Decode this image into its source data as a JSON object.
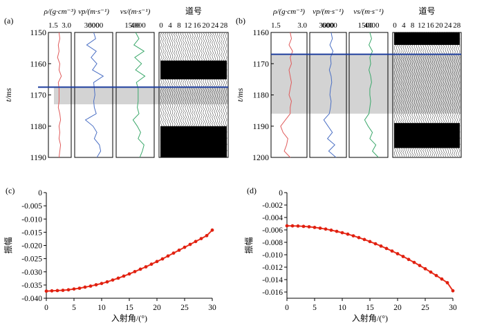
{
  "colors": {
    "density": "#e05a5a",
    "vp": "#4a6fc4",
    "vs": "#3aa86a",
    "marker_line": "#1f3f9e",
    "shade": "#d3d3d3",
    "amp_line": "#e8301e",
    "amp_marker": "#e02010"
  },
  "chart_data": [
    {
      "panel": "(a)",
      "type": "line",
      "ylabel": "t/ms",
      "ylim": [
        1150,
        1190
      ],
      "yticks": [
        "1150",
        "1160",
        "1170",
        "1180",
        "1190"
      ],
      "marker_time": 1167.5,
      "shaded_interval": [
        1167.5,
        1173
      ],
      "tracks": [
        {
          "label": "ρ/(g·cm⁻³)",
          "ticks": [
            "1.5",
            "3.0"
          ],
          "xlim": [
            1.5,
            3.0
          ],
          "t": [
            1150,
            1152,
            1154,
            1156,
            1158,
            1160,
            1162,
            1164,
            1166,
            1168,
            1170,
            1172,
            1174,
            1176,
            1178,
            1180,
            1182,
            1184,
            1186,
            1188,
            1190
          ],
          "values": [
            2.2,
            2.25,
            2.15,
            2.2,
            2.1,
            2.25,
            2.2,
            2.35,
            2.15,
            2.2,
            2.2,
            2.2,
            2.15,
            2.25,
            2.3,
            2.2,
            2.25,
            2.2,
            2.3,
            2.25,
            2.2
          ]
        },
        {
          "label": "vp/(m·s⁻¹)",
          "ticks": [
            "3000",
            "6000"
          ],
          "xlim": [
            1500,
            7500
          ],
          "t": [
            1150,
            1152,
            1154,
            1156,
            1158,
            1160,
            1162,
            1164,
            1166,
            1168,
            1170,
            1172,
            1174,
            1176,
            1178,
            1180,
            1182,
            1184,
            1186,
            1188,
            1190
          ],
          "values": [
            4500,
            4800,
            3400,
            4900,
            4100,
            5000,
            4300,
            6000,
            4500,
            4600,
            4700,
            4500,
            4600,
            4900,
            3200,
            4400,
            5000,
            4600,
            5400,
            5600,
            5000
          ]
        },
        {
          "label": "vs/(m·s⁻¹)",
          "ticks": [
            "1500",
            "4000"
          ],
          "xlim": [
            500,
            5000
          ],
          "t": [
            1150,
            1152,
            1154,
            1156,
            1158,
            1160,
            1162,
            1164,
            1166,
            1168,
            1170,
            1172,
            1174,
            1176,
            1178,
            1180,
            1182,
            1184,
            1186,
            1188,
            1190
          ],
          "values": [
            2800,
            3200,
            2600,
            3800,
            2700,
            3500,
            2800,
            3900,
            2900,
            3100,
            3100,
            3100,
            3000,
            3200,
            2500,
            3000,
            3400,
            3100,
            3800,
            3600,
            3300
          ]
        }
      ],
      "gather": {
        "label": "道号",
        "ticks": [
          "0",
          "4",
          "8",
          "12",
          "16",
          "20",
          "24",
          "28"
        ],
        "traces": 30,
        "events": [
          {
            "t": 1162,
            "height": 6
          },
          {
            "t": 1185,
            "height": 10
          }
        ]
      }
    },
    {
      "panel": "(b)",
      "type": "line",
      "ylabel": "t/ms",
      "ylim": [
        1160,
        1200
      ],
      "yticks": [
        "1160",
        "1170",
        "1180",
        "1190",
        "1200"
      ],
      "marker_time": 1167,
      "shaded_interval": [
        1167,
        1186
      ],
      "tracks": [
        {
          "label": "ρ/(g·cm⁻³)",
          "ticks": [
            "1.5",
            "3.0"
          ],
          "xlim": [
            1.5,
            3.0
          ],
          "t": [
            1160,
            1162,
            1164,
            1166,
            1168,
            1170,
            1172,
            1174,
            1176,
            1178,
            1180,
            1182,
            1184,
            1186,
            1188,
            1190,
            1192,
            1194,
            1196,
            1198,
            1200
          ],
          "values": [
            2.3,
            2.35,
            2.25,
            2.4,
            2.3,
            2.35,
            2.25,
            2.3,
            2.35,
            2.3,
            2.25,
            2.35,
            2.3,
            2.3,
            2.1,
            1.9,
            2.0,
            2.2,
            2.15,
            2.05,
            2.3
          ]
        },
        {
          "label": "vp/(m·s⁻¹)",
          "ticks": [
            "3000",
            "6000"
          ],
          "xlim": [
            1500,
            7500
          ],
          "t": [
            1160,
            1162,
            1164,
            1166,
            1168,
            1170,
            1172,
            1174,
            1176,
            1178,
            1180,
            1182,
            1184,
            1186,
            1188,
            1190,
            1192,
            1194,
            1196,
            1198,
            1200
          ],
          "values": [
            5000,
            5200,
            4800,
            5300,
            4900,
            5000,
            4700,
            5000,
            5100,
            4900,
            4800,
            5000,
            4900,
            4700,
            3800,
            4500,
            5200,
            4400,
            5600,
            4600,
            5800
          ]
        },
        {
          "label": "vs/(m·s⁻¹)",
          "ticks": [
            "1500",
            "4000"
          ],
          "xlim": [
            500,
            5000
          ],
          "t": [
            1160,
            1162,
            1164,
            1166,
            1168,
            1170,
            1172,
            1174,
            1176,
            1178,
            1180,
            1182,
            1184,
            1186,
            1188,
            1190,
            1192,
            1194,
            1196,
            1198,
            1200
          ],
          "values": [
            2900,
            3100,
            2800,
            3200,
            2900,
            3000,
            2800,
            3000,
            3100,
            2900,
            2900,
            3000,
            2900,
            2800,
            2300,
            2700,
            3200,
            2900,
            3600,
            3200,
            3900
          ]
        }
      ],
      "gather": {
        "label": "道号",
        "ticks": [
          "0",
          "4",
          "8",
          "12",
          "16",
          "20",
          "24",
          "28"
        ],
        "traces": 30,
        "events": [
          {
            "t": 1162,
            "height": 4
          },
          {
            "t": 1193,
            "height": 8
          }
        ]
      }
    },
    {
      "panel": "(c)",
      "type": "line",
      "xlabel": "入射角/(°)",
      "ylabel": "振幅",
      "xlim": [
        0,
        30
      ],
      "ylim": [
        -0.04,
        0
      ],
      "xticks": [
        "0",
        "5",
        "10",
        "15",
        "20",
        "25",
        "30"
      ],
      "yticks": [
        "0",
        "-0.005",
        "-0.010",
        "-0.015",
        "-0.020",
        "-0.025",
        "-0.030",
        "-0.035",
        "-0.040"
      ],
      "x": [
        0,
        1,
        2,
        3,
        4,
        5,
        6,
        7,
        8,
        9,
        10,
        11,
        12,
        13,
        14,
        15,
        16,
        17,
        18,
        19,
        20,
        21,
        22,
        23,
        24,
        25,
        26,
        27,
        28,
        29,
        30
      ],
      "values": [
        -0.0373,
        -0.0372,
        -0.0371,
        -0.037,
        -0.0368,
        -0.0365,
        -0.0362,
        -0.0358,
        -0.0354,
        -0.0349,
        -0.0344,
        -0.0338,
        -0.0331,
        -0.0324,
        -0.0316,
        -0.0308,
        -0.0299,
        -0.029,
        -0.0281,
        -0.0271,
        -0.0261,
        -0.0251,
        -0.024,
        -0.0229,
        -0.0218,
        -0.0207,
        -0.0196,
        -0.0185,
        -0.0174,
        -0.0163,
        -0.0142
      ]
    },
    {
      "panel": "(d)",
      "type": "line",
      "xlabel": "入射角/(°)",
      "ylabel": "振幅",
      "xlim": [
        0,
        30
      ],
      "ylim": [
        -0.017,
        0
      ],
      "xticks": [
        "0",
        "5",
        "10",
        "15",
        "20",
        "25",
        "30"
      ],
      "yticks": [
        "0",
        "-0.002",
        "-0.004",
        "-0.006",
        "-0.008",
        "-0.010",
        "-0.012",
        "-0.014",
        "-0.016"
      ],
      "x": [
        0,
        1,
        2,
        3,
        4,
        5,
        6,
        7,
        8,
        9,
        10,
        11,
        12,
        13,
        14,
        15,
        16,
        17,
        18,
        19,
        20,
        21,
        22,
        23,
        24,
        25,
        26,
        27,
        28,
        29,
        30
      ],
      "values": [
        -0.00535,
        -0.00536,
        -0.00538,
        -0.00543,
        -0.0055,
        -0.0056,
        -0.00572,
        -0.00587,
        -0.00604,
        -0.00623,
        -0.00645,
        -0.00669,
        -0.00695,
        -0.00724,
        -0.00755,
        -0.00788,
        -0.00823,
        -0.0086,
        -0.00899,
        -0.0094,
        -0.00983,
        -0.01028,
        -0.01075,
        -0.01123,
        -0.01173,
        -0.01225,
        -0.01279,
        -0.01334,
        -0.01391,
        -0.0145,
        -0.0158
      ]
    }
  ]
}
